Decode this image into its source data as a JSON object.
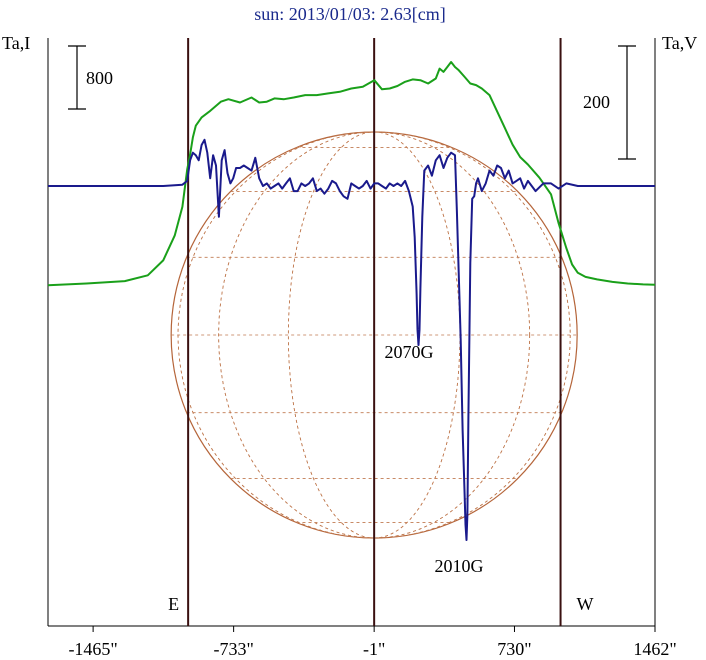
{
  "chart_data": {
    "type": "line",
    "title": "sun: 2013/01/03: 2.63[cm]",
    "ylabel_left": "Ta,I",
    "ylabel_right": "Ta,V",
    "scale_bar_left": "800",
    "scale_bar_right": "200",
    "xlabel": "",
    "x_tick_labels": [
      "-1465\"",
      "-733\"",
      "-1\"",
      "730\"",
      "1462\""
    ],
    "x_ticks": [
      -1465,
      -733,
      -1,
      730,
      1462
    ],
    "xlim": [
      -1700,
      1462
    ],
    "limb_markers": [
      {
        "label": "E",
        "x": -970
      },
      {
        "label": "W",
        "x": 970
      }
    ],
    "center_line_x": -1,
    "annotations": [
      {
        "text": "2070G",
        "x": 230,
        "y_series": "Ta,V"
      },
      {
        "text": "2010G",
        "x": 480,
        "y_series": "Ta,V"
      }
    ],
    "grid": false,
    "series": [
      {
        "name": "Ta,I",
        "color": "#1aa01a",
        "x": [
          -1700,
          -1500,
          -1300,
          -1180,
          -1100,
          -1040,
          -1000,
          -975,
          -960,
          -945,
          -930,
          -900,
          -860,
          -800,
          -760,
          -700,
          -640,
          -600,
          -560,
          -520,
          -470,
          -420,
          -360,
          -300,
          -240,
          -180,
          -120,
          -60,
          0,
          40,
          80,
          120,
          160,
          200,
          240,
          280,
          320,
          340,
          360,
          380,
          400,
          420,
          440,
          470,
          500,
          530,
          560,
          600,
          640,
          680,
          720,
          760,
          800,
          860,
          920,
          960,
          1000,
          1030,
          1060,
          1100,
          1160,
          1240,
          1320,
          1400,
          1462
        ],
        "y": [
          -1200,
          -1180,
          -1150,
          -1080,
          -900,
          -600,
          -250,
          200,
          380,
          590,
          730,
          830,
          900,
          1020,
          1050,
          1010,
          1070,
          1010,
          1020,
          1060,
          1050,
          1070,
          1100,
          1100,
          1120,
          1140,
          1180,
          1200,
          1280,
          1170,
          1180,
          1210,
          1260,
          1290,
          1280,
          1240,
          1300,
          1420,
          1380,
          1440,
          1500,
          1440,
          1400,
          1320,
          1240,
          1220,
          1180,
          1100,
          900,
          700,
          500,
          350,
          260,
          100,
          -100,
          -450,
          -750,
          -950,
          -1050,
          -1100,
          -1130,
          -1160,
          -1180,
          -1190,
          -1195
        ]
      },
      {
        "name": "Ta,V",
        "color": "#1a1a8c",
        "x": [
          -1700,
          -1400,
          -1100,
          -1000,
          -975,
          -960,
          -945,
          -930,
          -915,
          -900,
          -885,
          -870,
          -855,
          -840,
          -825,
          -810,
          -795,
          -780,
          -765,
          -750,
          -735,
          -720,
          -700,
          -680,
          -660,
          -640,
          -620,
          -600,
          -580,
          -560,
          -540,
          -520,
          -500,
          -480,
          -460,
          -440,
          -420,
          -400,
          -380,
          -360,
          -340,
          -320,
          -300,
          -280,
          -260,
          -240,
          -220,
          -200,
          -180,
          -160,
          -140,
          -120,
          -100,
          -80,
          -60,
          -40,
          -20,
          0,
          20,
          40,
          60,
          80,
          100,
          120,
          140,
          160,
          180,
          200,
          210,
          220,
          225,
          230,
          235,
          240,
          250,
          260,
          280,
          300,
          320,
          340,
          360,
          380,
          400,
          420,
          430,
          440,
          450,
          460,
          470,
          475,
          480,
          485,
          490,
          500,
          510,
          520,
          530,
          540,
          560,
          580,
          600,
          620,
          640,
          660,
          680,
          700,
          720,
          740,
          760,
          780,
          800,
          840,
          880,
          920,
          960,
          1000,
          1060,
          1120,
          1200,
          1300,
          1400,
          1462
        ],
        "y": [
          0,
          0,
          0,
          5,
          20,
          100,
          130,
          120,
          100,
          160,
          180,
          130,
          30,
          120,
          80,
          -120,
          100,
          140,
          50,
          10,
          30,
          70,
          70,
          80,
          70,
          60,
          110,
          30,
          0,
          10,
          -10,
          0,
          10,
          -10,
          10,
          30,
          -20,
          -20,
          10,
          0,
          10,
          30,
          -20,
          -10,
          -30,
          -10,
          20,
          10,
          -20,
          -40,
          -50,
          10,
          0,
          -10,
          0,
          20,
          -10,
          10,
          10,
          0,
          -10,
          10,
          0,
          10,
          0,
          20,
          -20,
          -80,
          -200,
          -420,
          -560,
          -620,
          -560,
          -400,
          -120,
          60,
          80,
          40,
          100,
          120,
          70,
          110,
          130,
          120,
          -100,
          -350,
          -600,
          -950,
          -1200,
          -1320,
          -1380,
          -1280,
          -900,
          -300,
          -50,
          -40,
          10,
          30,
          -20,
          10,
          60,
          40,
          80,
          70,
          30,
          60,
          10,
          20,
          30,
          -10,
          20,
          -20,
          10,
          10,
          -10,
          10,
          0,
          0,
          0,
          0,
          0,
          0
        ]
      }
    ]
  }
}
